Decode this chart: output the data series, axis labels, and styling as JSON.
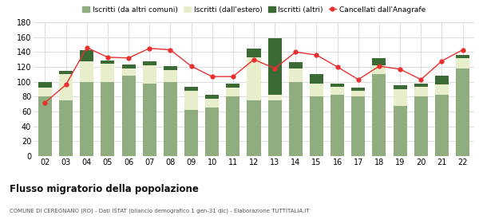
{
  "years": [
    "02",
    "03",
    "04",
    "05",
    "06",
    "07",
    "08",
    "09",
    "10",
    "11",
    "12",
    "13",
    "14",
    "15",
    "16",
    "17",
    "18",
    "19",
    "20",
    "21",
    "22"
  ],
  "iscritti_altri_comuni": [
    80,
    75,
    100,
    100,
    108,
    97,
    100,
    62,
    65,
    80,
    75,
    75,
    100,
    80,
    83,
    80,
    110,
    68,
    80,
    83,
    118
  ],
  "iscritti_estero": [
    12,
    35,
    28,
    24,
    10,
    25,
    16,
    26,
    12,
    12,
    58,
    7,
    18,
    18,
    10,
    8,
    12,
    22,
    13,
    13,
    14
  ],
  "iscritti_altri": [
    8,
    5,
    14,
    5,
    5,
    6,
    5,
    5,
    6,
    5,
    12,
    77,
    8,
    12,
    4,
    4,
    10,
    5,
    5,
    12,
    4
  ],
  "cancellati": [
    72,
    96,
    146,
    133,
    132,
    145,
    143,
    121,
    107,
    107,
    130,
    118,
    140,
    136,
    120,
    103,
    121,
    117,
    103,
    128,
    143
  ],
  "color_altri_comuni": "#8fad7f",
  "color_estero": "#e8eecb",
  "color_altri": "#3a6b35",
  "color_cancellati": "#e83030",
  "ylim": [
    0,
    180
  ],
  "yticks": [
    0,
    20,
    40,
    60,
    80,
    100,
    120,
    140,
    160,
    180
  ],
  "title": "Flusso migratorio della popolazione",
  "subtitle": "COMUNE DI CEREGNANO (RO) - Dati ISTAT (bilancio demografico 1 gen-31 dic) - Elaborazione TUTTITALIA.IT",
  "legend_labels": [
    "Iscritti (da altri comuni)",
    "Iscritti (dall'estero)",
    "Iscritti (altri)",
    "Cancellati dall'Anagrafe"
  ],
  "bg_color": "#ffffff",
  "grid_color": "#d8d8d8"
}
